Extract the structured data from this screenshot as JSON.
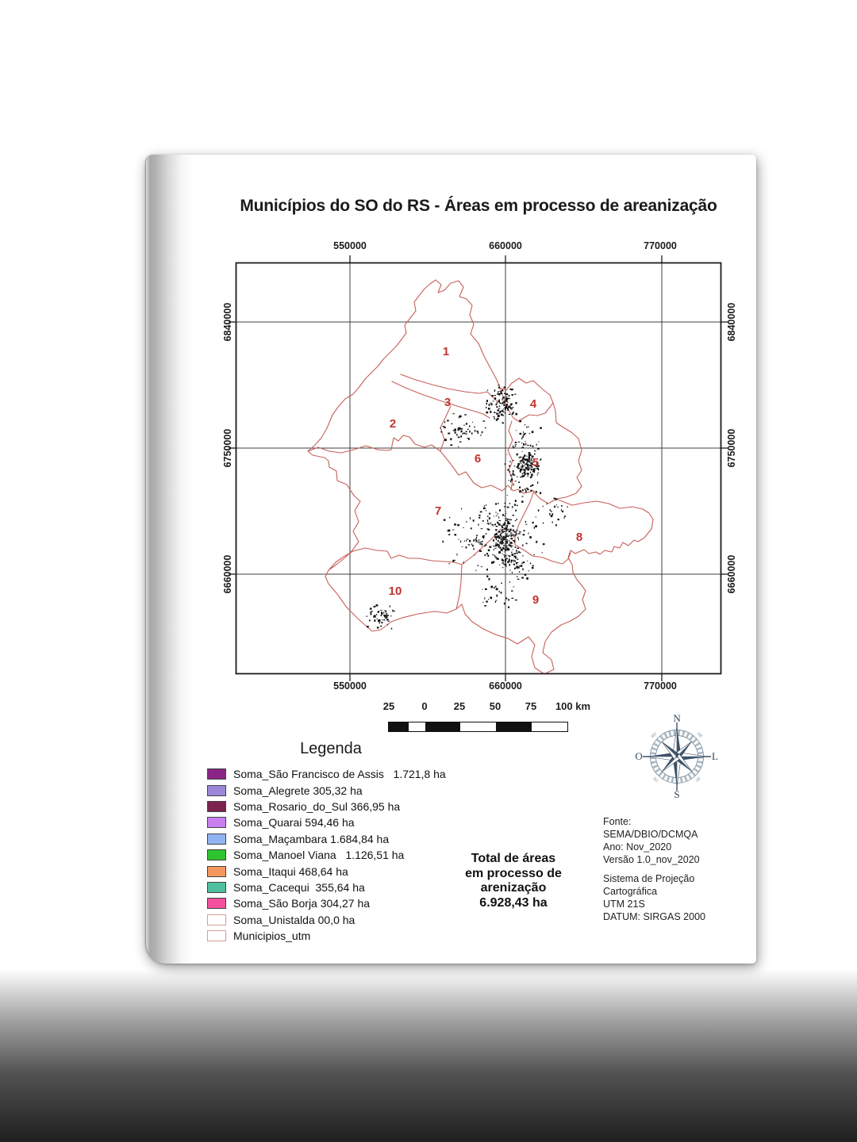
{
  "page_title": "Municípios do SO do RS - Áreas em processo de areanização",
  "map": {
    "top_ticks": [
      "550000",
      "660000",
      "770000"
    ],
    "bottom_ticks": [
      "550000",
      "660000",
      "770000"
    ],
    "left_ticks": [
      "6840000",
      "6750000",
      "6660000"
    ],
    "right_ticks": [
      "6840000",
      "6750000",
      "6660000"
    ],
    "region_labels": [
      "1",
      "2",
      "3",
      "4",
      "5",
      "6",
      "7",
      "8",
      "9",
      "10"
    ]
  },
  "scalebar": {
    "labels": [
      "25",
      "0",
      "25",
      "50",
      "75",
      "100 km"
    ]
  },
  "compass": {
    "north": "N",
    "south": "S",
    "west": "O",
    "east": "L"
  },
  "legend": {
    "title": "Legenda",
    "items": [
      {
        "label": "Soma_São Francisco de Assis   1.721,8 ha",
        "color": "#8a2486",
        "border": "#444444"
      },
      {
        "label": "Soma_Alegrete 305,32 ha",
        "color": "#9a87d8",
        "border": "#444444"
      },
      {
        "label": "Soma_Rosario_do_Sul 366,95 ha",
        "color": "#7c2150",
        "border": "#444444"
      },
      {
        "label": "Soma_Quarai 594,46 ha",
        "color": "#c97ff0",
        "border": "#444444"
      },
      {
        "label": "Soma_Maçambara 1.684,84 ha",
        "color": "#90b5f2",
        "border": "#444444"
      },
      {
        "label": "Soma_Manoel Viana   1.126,51 ha",
        "color": "#2ec42e",
        "border": "#444444"
      },
      {
        "label": "Soma_Itaqui 468,64 ha",
        "color": "#f4975e",
        "border": "#444444"
      },
      {
        "label": "Soma_Cacequi  355,64 ha",
        "color": "#50bfa0",
        "border": "#444444"
      },
      {
        "label": "Soma_São Borja 304,27 ha",
        "color": "#f3509f",
        "border": "#444444"
      },
      {
        "label": "Soma_Unistalda 00,0 ha",
        "color": "#ffffff",
        "border": "#d89b94"
      },
      {
        "label": "Municipios_utm",
        "color": "#ffffff",
        "border": "#d89b94"
      }
    ]
  },
  "total_box": {
    "lines": [
      "Total de áreas",
      "em processo de",
      "arenização",
      "6.928,43 ha"
    ]
  },
  "source_box": {
    "lines": [
      "Fonte:",
      "SEMA/DBIO/DCMQA",
      "Ano: Nov_2020",
      "Versão 1.0_nov_2020"
    ]
  },
  "projection_box": {
    "lines": [
      "Sistema de Projeção",
      "Cartográfica",
      "UTM 21S",
      "DATUM: SIRGAS 2000"
    ]
  },
  "colors": {
    "boundary": "#c7605a",
    "region_number": "#c0332e",
    "grid": "#3f3f3f",
    "frame": "#1c1c1c",
    "compass": "#3e5266"
  }
}
